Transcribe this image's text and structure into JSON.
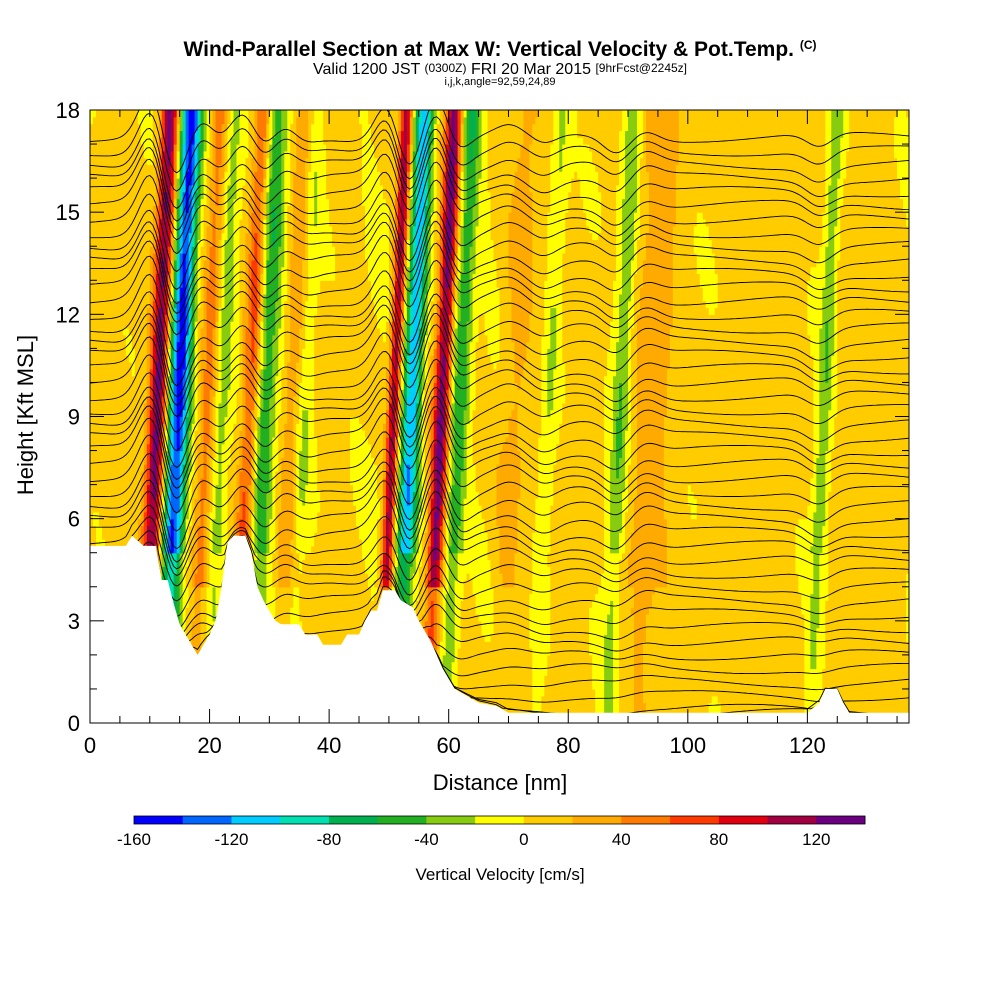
{
  "header": {
    "title": "Wind-Parallel Section at Max W: Vertical Velocity & Pot.Temp.",
    "title_mark": "(C)",
    "valid_prefix": "Valid 1200 JST",
    "valid_utc": "(0300Z)",
    "valid_date": "FRI 20 Mar 2015",
    "forecast": "[9hrFcst@2245z]",
    "indices": "i,j,k,angle=92,59,24,89"
  },
  "chart_data": {
    "type": "heatmap",
    "xlabel": "Distance [nm]",
    "ylabel": "Height [Kft MSL]",
    "xlim": [
      0,
      137
    ],
    "ylim": [
      0,
      18
    ],
    "x_ticks": [
      0,
      20,
      40,
      60,
      80,
      100,
      120
    ],
    "y_ticks": [
      0,
      3,
      6,
      9,
      12,
      15,
      18
    ],
    "colorbar": {
      "label": "Vertical Velocity [cm/s]",
      "range": [
        -160,
        140
      ],
      "tick_values": [
        -160,
        -120,
        -80,
        -40,
        0,
        40,
        80,
        120
      ],
      "colors": [
        "#0000ff",
        "#0066ff",
        "#00ccff",
        "#00e0b0",
        "#00b050",
        "#22b022",
        "#88cc11",
        "#ffff00",
        "#ffcc00",
        "#ffaa00",
        "#ff7a00",
        "#ff3a00",
        "#e00010",
        "#a00040",
        "#6a0080"
      ]
    },
    "terrain": [
      [
        0,
        5.2
      ],
      [
        6,
        5.2
      ],
      [
        7,
        5.5
      ],
      [
        9,
        5.2
      ],
      [
        11,
        5.2
      ],
      [
        12,
        4.2
      ],
      [
        13,
        4.2
      ],
      [
        14,
        3.5
      ],
      [
        15,
        2.9
      ],
      [
        16,
        2.6
      ],
      [
        17,
        2.3
      ],
      [
        18,
        2.0
      ],
      [
        19,
        2.3
      ],
      [
        20,
        2.6
      ],
      [
        21,
        3.0
      ],
      [
        22,
        4.0
      ],
      [
        23,
        5.3
      ],
      [
        24,
        5.5
      ],
      [
        26,
        5.5
      ],
      [
        27,
        5.0
      ],
      [
        28,
        4.0
      ],
      [
        29,
        3.6
      ],
      [
        30,
        3.3
      ],
      [
        31,
        3.0
      ],
      [
        32,
        2.9
      ],
      [
        35,
        2.9
      ],
      [
        36,
        2.6
      ],
      [
        38,
        2.6
      ],
      [
        39,
        2.3
      ],
      [
        41,
        2.3
      ],
      [
        42,
        2.3
      ],
      [
        43,
        2.6
      ],
      [
        45,
        2.6
      ],
      [
        46,
        3.0
      ],
      [
        47,
        3.3
      ],
      [
        48,
        3.3
      ],
      [
        49,
        3.9
      ],
      [
        51,
        3.9
      ],
      [
        52,
        3.6
      ],
      [
        54,
        3.4
      ],
      [
        55,
        3.0
      ],
      [
        56,
        2.7
      ],
      [
        57,
        2.4
      ],
      [
        58,
        2.0
      ],
      [
        59,
        1.6
      ],
      [
        60,
        1.3
      ],
      [
        61,
        1.0
      ],
      [
        63,
        0.8
      ],
      [
        65,
        0.6
      ],
      [
        68,
        0.5
      ],
      [
        70,
        0.3
      ],
      [
        120,
        0.3
      ],
      [
        122,
        0.6
      ],
      [
        123,
        1.0
      ],
      [
        125,
        1.0
      ],
      [
        126,
        0.6
      ],
      [
        127,
        0.3
      ],
      [
        137,
        0.3
      ]
    ],
    "updraft_cores": [
      {
        "x": 10.5,
        "w": 1.5,
        "amp": 125
      },
      {
        "x": 19,
        "w": 1.5,
        "amp": 50
      },
      {
        "x": 26,
        "w": 1.4,
        "amp": 65
      },
      {
        "x": 33,
        "w": 1.6,
        "amp": 35
      },
      {
        "x": 50,
        "w": 1.0,
        "amp": 110
      },
      {
        "x": 58,
        "w": 1.3,
        "amp": 120
      },
      {
        "x": 70,
        "w": 2.5,
        "amp": 20
      },
      {
        "x": 93,
        "w": 3.0,
        "amp": 22
      }
    ],
    "downdraft_cores": [
      {
        "x": 14,
        "w": 1.8,
        "amp": -150
      },
      {
        "x": 21,
        "w": 1.8,
        "amp": -40
      },
      {
        "x": 28.5,
        "w": 1.8,
        "amp": -55
      },
      {
        "x": 35,
        "w": 1.5,
        "amp": -25
      },
      {
        "x": 53,
        "w": 1.6,
        "amp": -120
      },
      {
        "x": 61,
        "w": 1.6,
        "amp": -60
      },
      {
        "x": 76,
        "w": 1.5,
        "amp": -30
      },
      {
        "x": 88,
        "w": 1.5,
        "amp": -45
      },
      {
        "x": 122,
        "w": 1.2,
        "amp": -40
      }
    ]
  }
}
